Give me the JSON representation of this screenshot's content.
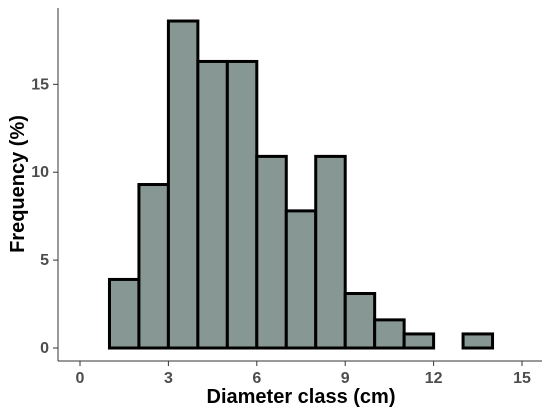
{
  "chart_data": {
    "type": "bar",
    "title": "",
    "xlabel": "Diameter class (cm)",
    "ylabel": "Frequency (%)",
    "xlim": [
      0,
      15
    ],
    "ylim": [
      0,
      19
    ],
    "x_ticks": [
      "0",
      "3",
      "6",
      "9",
      "12",
      "15"
    ],
    "y_ticks": [
      "0",
      "5",
      "10",
      "15"
    ],
    "bin_width": 1,
    "bins": [
      {
        "start": 0,
        "end": 1,
        "value": 0
      },
      {
        "start": 1,
        "end": 2,
        "value": 3.9
      },
      {
        "start": 2,
        "end": 3,
        "value": 9.3
      },
      {
        "start": 3,
        "end": 4,
        "value": 18.6
      },
      {
        "start": 4,
        "end": 5,
        "value": 16.3
      },
      {
        "start": 5,
        "end": 6,
        "value": 16.3
      },
      {
        "start": 6,
        "end": 7,
        "value": 10.9
      },
      {
        "start": 7,
        "end": 8,
        "value": 7.8
      },
      {
        "start": 8,
        "end": 9,
        "value": 10.9
      },
      {
        "start": 9,
        "end": 10,
        "value": 3.1
      },
      {
        "start": 10,
        "end": 11,
        "value": 1.6
      },
      {
        "start": 11,
        "end": 12,
        "value": 0.8
      },
      {
        "start": 12,
        "end": 13,
        "value": 0
      },
      {
        "start": 13,
        "end": 14,
        "value": 0.8
      },
      {
        "start": 14,
        "end": 15,
        "value": 0
      }
    ],
    "bar_fill": "#879794",
    "bar_stroke": "#000000",
    "axis_color": "#333333",
    "grid": false,
    "legend": "none"
  }
}
